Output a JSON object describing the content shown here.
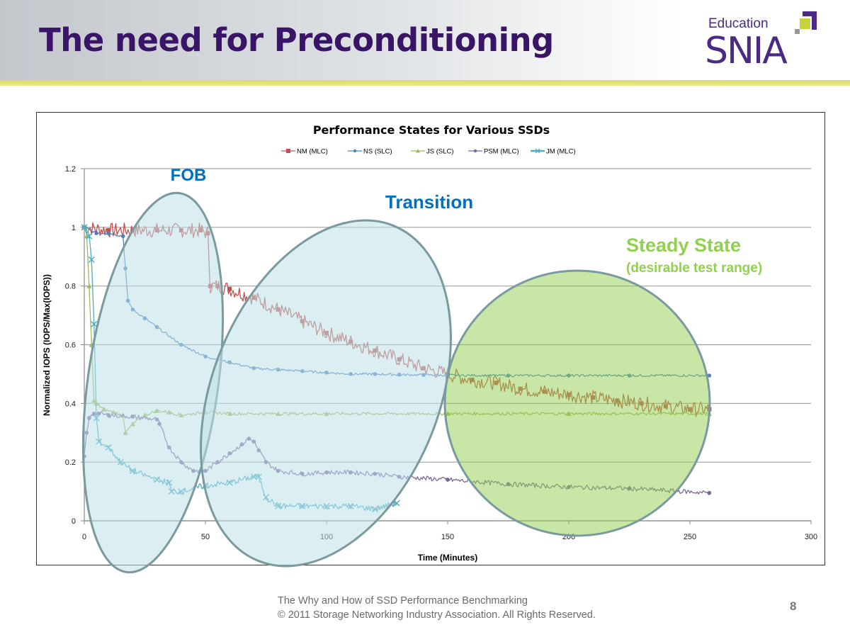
{
  "slide": {
    "title": "The need for Preconditioning",
    "logo": {
      "top": "Education",
      "main": "SNIA"
    },
    "footer": {
      "line1": "The Why and How of SSD Performance Benchmarking",
      "line2": "© 2011 Storage Networking Industry Association. All Rights Reserved."
    },
    "page_number": "8"
  },
  "chart_data": {
    "type": "line",
    "title": "Performance States for Various SSDs",
    "xlabel": "Time (Minutes)",
    "ylabel": "Normalized IOPS (IOPS/Max(IOPS))",
    "xlim": [
      0,
      300
    ],
    "ylim": [
      0,
      1.2
    ],
    "xticks": [
      0,
      50,
      100,
      150,
      200,
      250,
      300
    ],
    "yticks": [
      0,
      0.2,
      0.4,
      0.6,
      0.8,
      1,
      1.2
    ],
    "ytick_labels": [
      "0",
      "0.2",
      "0.4",
      "0.6",
      "0.8",
      "1",
      "1.2"
    ],
    "grid": true,
    "legend_position": "top",
    "series": [
      {
        "name": "NM (MLC)",
        "color": "#c0504d",
        "marker": "square",
        "x": [
          0,
          10,
          20,
          30,
          40,
          48,
          51,
          52,
          55,
          60,
          70,
          80,
          90,
          100,
          110,
          120,
          130,
          140,
          150,
          160,
          170,
          180,
          190,
          200,
          210,
          220,
          230,
          240,
          250,
          258
        ],
        "y": [
          1.0,
          0.99,
          0.99,
          0.99,
          0.99,
          0.99,
          0.98,
          0.8,
          0.8,
          0.79,
          0.76,
          0.72,
          0.68,
          0.64,
          0.61,
          0.58,
          0.55,
          0.52,
          0.5,
          0.48,
          0.47,
          0.45,
          0.44,
          0.43,
          0.42,
          0.41,
          0.4,
          0.39,
          0.38,
          0.38
        ]
      },
      {
        "name": "NS (SLC)",
        "color": "#4f81bd",
        "marker": "dot",
        "x": [
          0,
          5,
          10,
          16,
          17,
          18,
          20,
          25,
          30,
          40,
          50,
          60,
          70,
          80,
          90,
          100,
          110,
          120,
          130,
          140,
          150,
          175,
          200,
          225,
          258
        ],
        "y": [
          1.0,
          0.98,
          0.98,
          0.97,
          0.86,
          0.75,
          0.72,
          0.69,
          0.66,
          0.6,
          0.56,
          0.54,
          0.52,
          0.515,
          0.51,
          0.505,
          0.5,
          0.5,
          0.498,
          0.497,
          0.496,
          0.495,
          0.495,
          0.495,
          0.495
        ]
      },
      {
        "name": "JS (SLC)",
        "color": "#9bbb59",
        "marker": "triangle",
        "x": [
          0,
          1,
          2,
          3,
          4,
          5,
          8,
          12,
          16,
          17,
          20,
          25,
          30,
          35,
          40,
          50,
          60,
          80,
          100,
          150,
          200,
          258
        ],
        "y": [
          1.0,
          0.97,
          0.8,
          0.6,
          0.41,
          0.4,
          0.38,
          0.37,
          0.36,
          0.3,
          0.33,
          0.36,
          0.375,
          0.37,
          0.36,
          0.37,
          0.365,
          0.365,
          0.365,
          0.365,
          0.365,
          0.365
        ]
      },
      {
        "name": "PSM (MLC)",
        "color": "#8064a2",
        "marker": "dot",
        "x": [
          0,
          1,
          2,
          4,
          6,
          10,
          20,
          30,
          31,
          35,
          40,
          45,
          50,
          55,
          60,
          65,
          68,
          70,
          72,
          75,
          80,
          90,
          100,
          110,
          120,
          130,
          150,
          175,
          200,
          225,
          258
        ],
        "y": [
          0.22,
          0.3,
          0.35,
          0.365,
          0.365,
          0.36,
          0.355,
          0.345,
          0.33,
          0.25,
          0.2,
          0.17,
          0.17,
          0.2,
          0.23,
          0.26,
          0.28,
          0.27,
          0.24,
          0.2,
          0.17,
          0.16,
          0.165,
          0.165,
          0.16,
          0.15,
          0.14,
          0.125,
          0.115,
          0.11,
          0.095
        ]
      },
      {
        "name": "JM (MLC)",
        "color": "#4bacc6",
        "marker": "x",
        "x": [
          0,
          2,
          3,
          4,
          5,
          6,
          10,
          15,
          20,
          30,
          35,
          36,
          40,
          50,
          60,
          70,
          72,
          75,
          80,
          90,
          100,
          110,
          120,
          129
        ],
        "y": [
          1.0,
          0.97,
          0.89,
          0.67,
          0.35,
          0.27,
          0.25,
          0.2,
          0.17,
          0.14,
          0.13,
          0.1,
          0.1,
          0.12,
          0.13,
          0.15,
          0.15,
          0.08,
          0.05,
          0.05,
          0.05,
          0.05,
          0.04,
          0.06
        ]
      }
    ],
    "annotations": [
      {
        "label": "FOB",
        "color": "#0070c0",
        "region": "first-out-of-box",
        "x_range": [
          0,
          57
        ]
      },
      {
        "label": "Transition",
        "color": "#0070c0",
        "region": "transition",
        "x_range": [
          52,
          148
        ]
      },
      {
        "label": "Steady State",
        "sublabel": "(desirable test range)",
        "color": "#92d050",
        "region": "steady-state",
        "x_range": [
          150,
          258
        ]
      }
    ]
  }
}
